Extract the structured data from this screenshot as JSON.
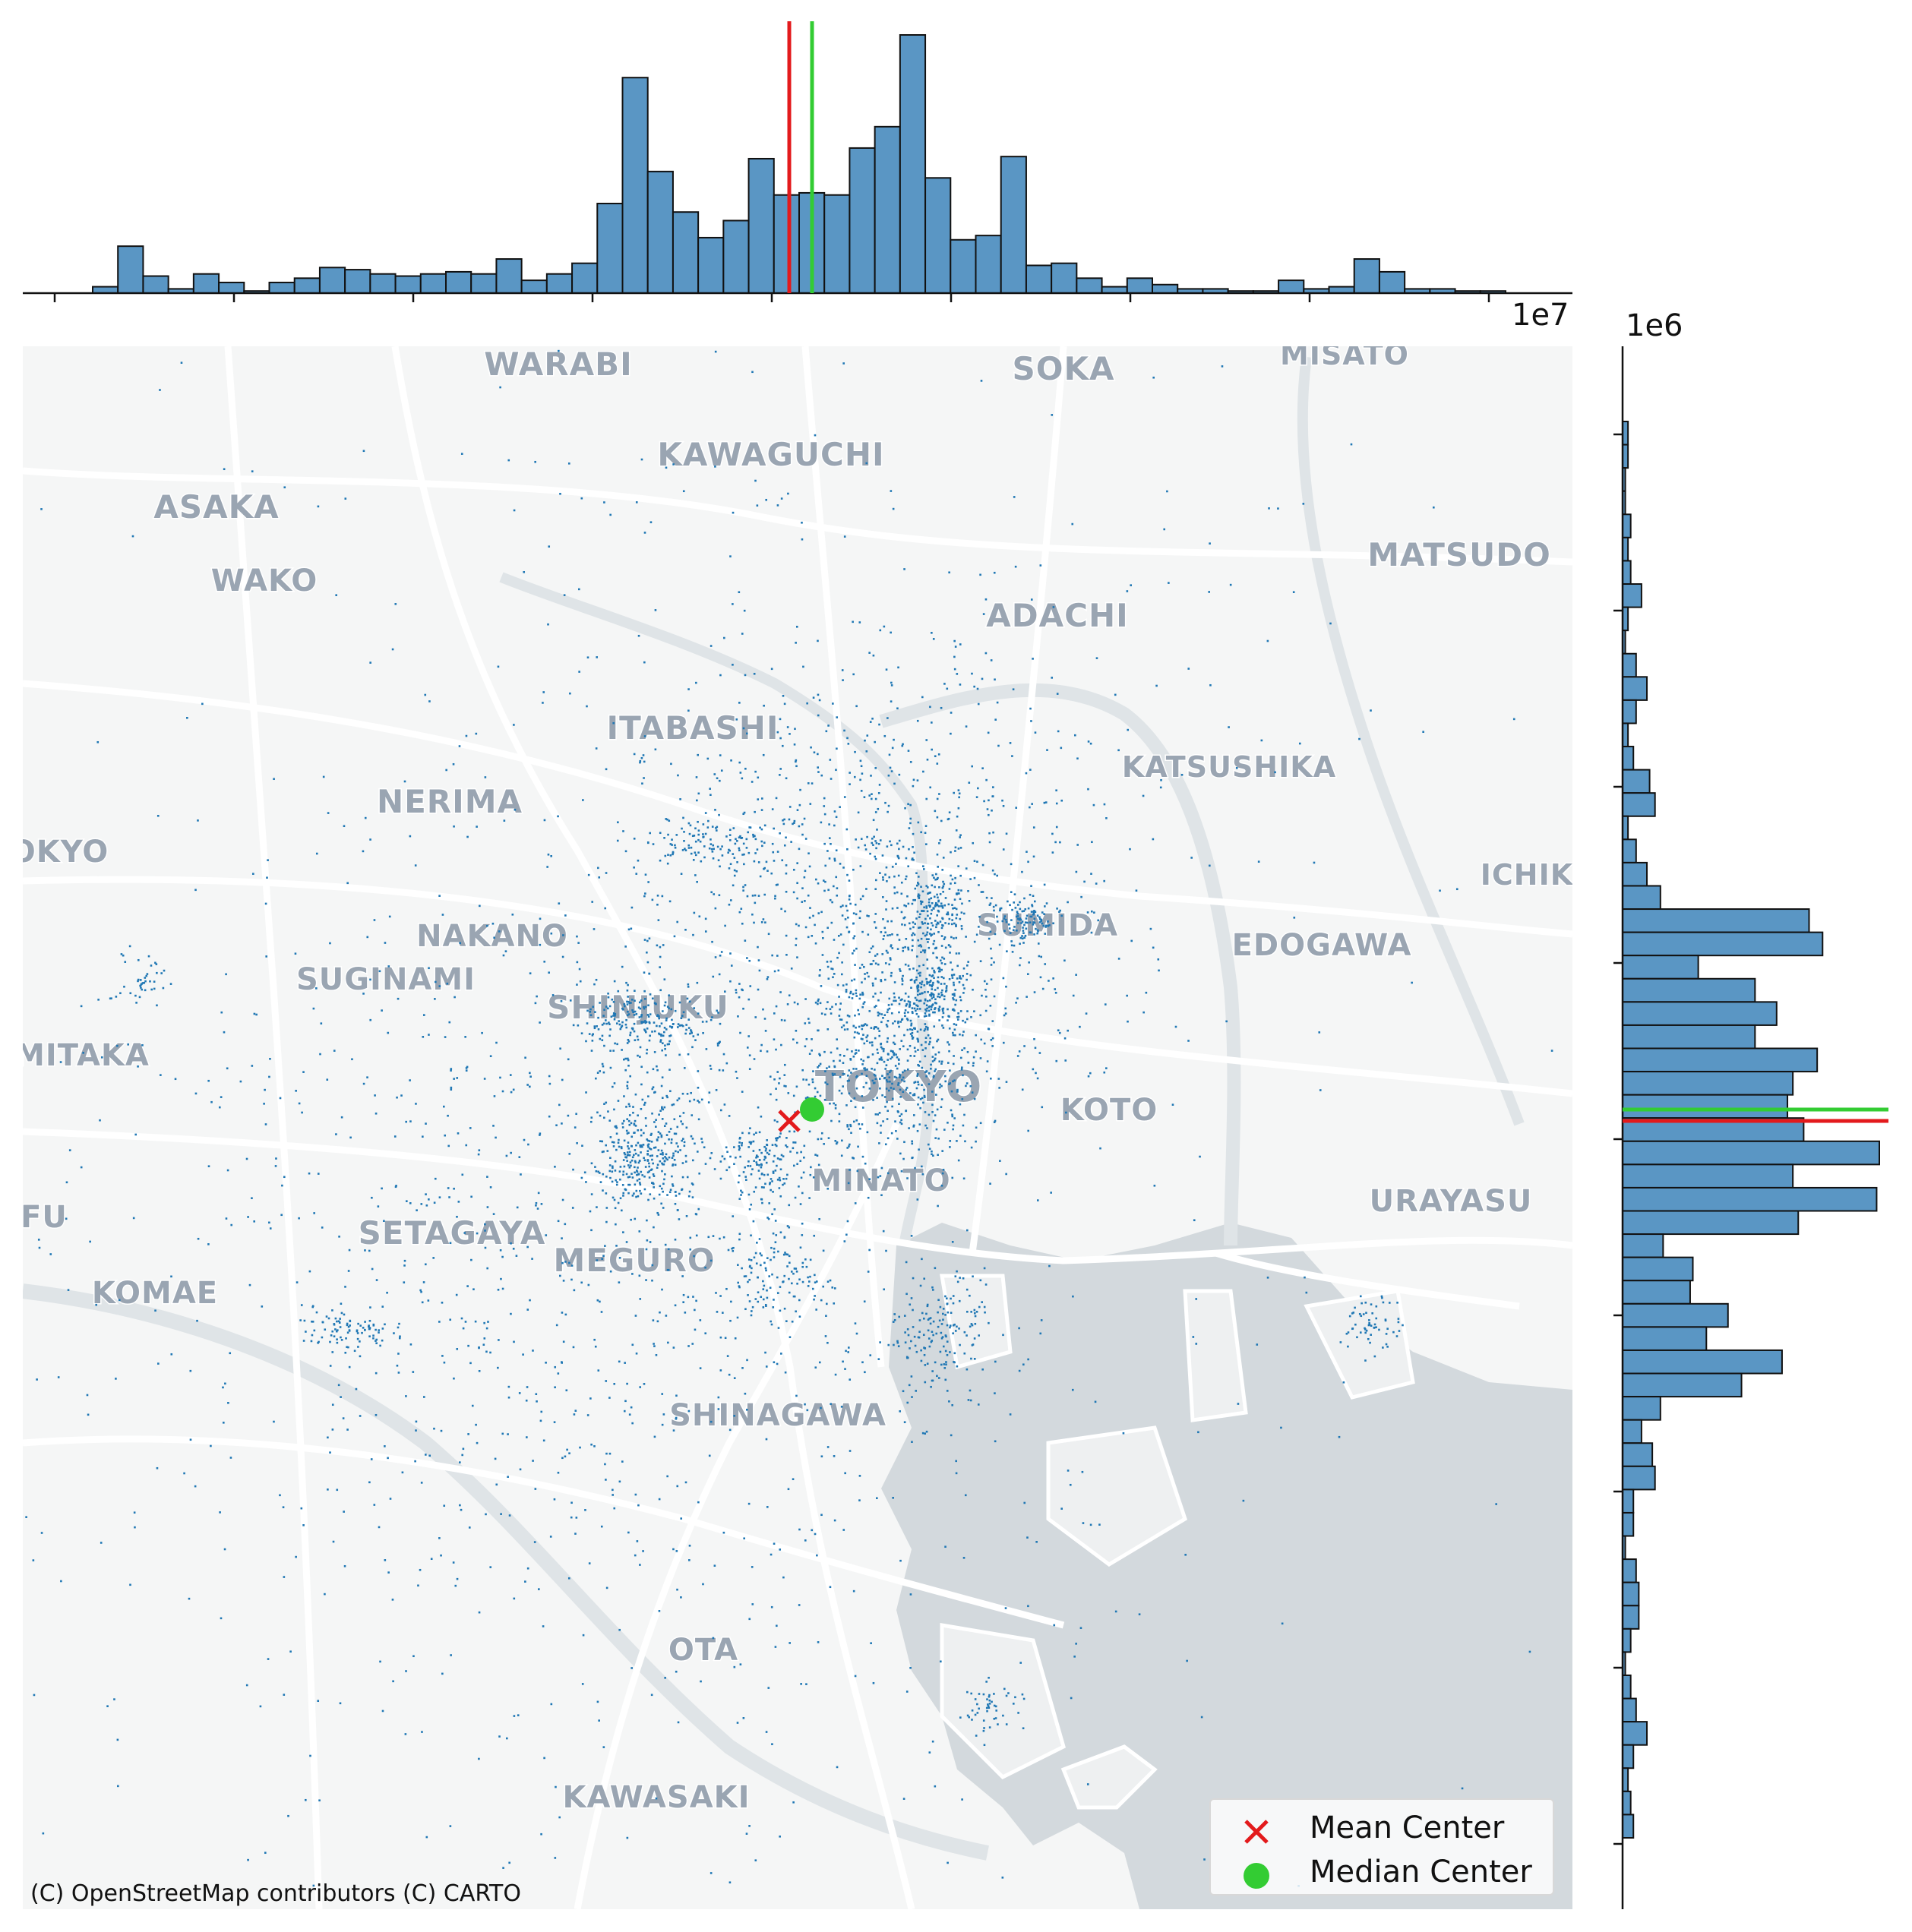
{
  "attribution": "(C) OpenStreetMap contributors (C) CARTO",
  "x_offset_label": "1e7",
  "y_offset_label": "1e6",
  "legend": {
    "mean_label": "Mean Center",
    "median_label": "Median Center"
  },
  "colors": {
    "bars": "#5a96c4",
    "points": "#1f77b4",
    "mean": "#e31a1c",
    "median": "#33cc33",
    "water": "#d3d9dd",
    "land": "#f5f6f6"
  },
  "place_labels": [
    "WARABI",
    "SOKA",
    "MISATO",
    "KAWAGUCHI",
    "ASAKA",
    "WAKO",
    "MATSUDO",
    "ADACHI",
    "ITABASHI",
    "KATSUSHIKA",
    "NERIMA",
    "OKYO",
    "ICHIK",
    "NAKANO",
    "SUMIDA",
    "EDOGAWA",
    "SUGINAMI",
    "SHINJUKU",
    "MITAKA",
    "TOKYO",
    "KOTO",
    "MINATO",
    "URAYASU",
    "FU",
    "SETAGAYA",
    "MEGURO",
    "KOMAE",
    "SHINAGAWA",
    "OTA",
    "KAWASAKI"
  ],
  "chart_data": {
    "type": "scatter",
    "title": "",
    "description_of_values": "histogram bin counts are relative heights; no count axis is printed",
    "x_hist_counts": [
      3,
      22,
      8,
      2,
      9,
      5,
      1,
      5,
      7,
      12,
      11,
      9,
      8,
      9,
      10,
      9,
      16,
      6,
      9,
      14,
      42,
      101,
      57,
      38,
      26,
      34,
      63,
      46,
      47,
      46,
      68,
      78,
      121,
      54,
      25,
      27,
      64,
      13,
      14,
      7,
      3,
      7,
      4,
      2,
      2,
      1,
      1,
      6,
      2,
      3,
      16,
      10,
      2,
      2,
      1,
      1
    ],
    "y_hist_counts": [
      2,
      2,
      1,
      1,
      3,
      2,
      3,
      7,
      2,
      1,
      5,
      9,
      5,
      2,
      4,
      10,
      12,
      2,
      5,
      9,
      14,
      69,
      74,
      28,
      49,
      57,
      49,
      72,
      63,
      61,
      67,
      95,
      63,
      94,
      65,
      15,
      26,
      25,
      39,
      31,
      59,
      44,
      14,
      7,
      11,
      12,
      4,
      4,
      1,
      5,
      6,
      6,
      3,
      1,
      3,
      5,
      9,
      4,
      2,
      3,
      4
    ]
  }
}
